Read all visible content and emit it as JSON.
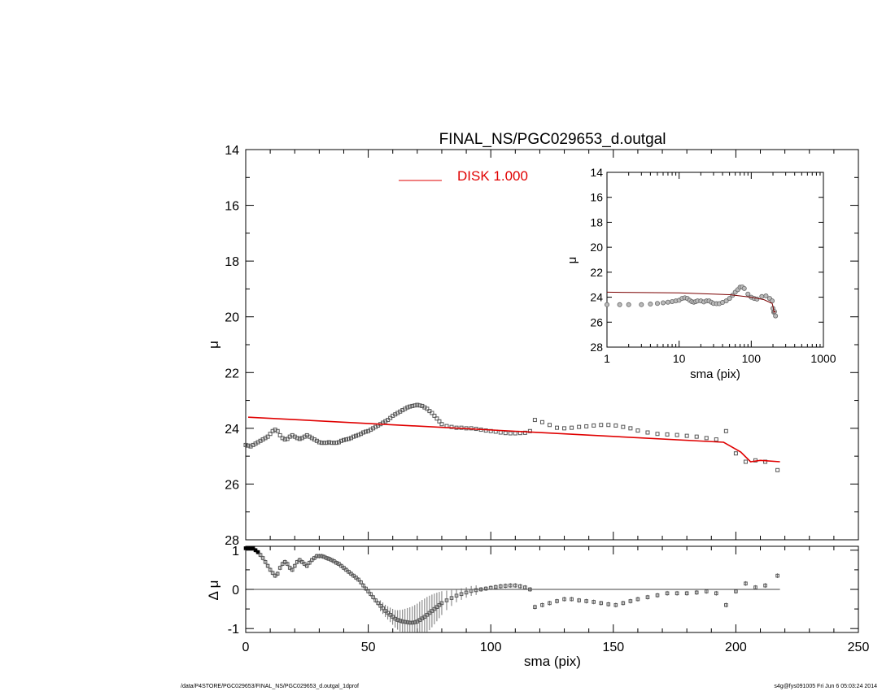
{
  "title": "FINAL_NS/PGC029653_d.outgal",
  "footer": {
    "left": "/data/P4STORE/PGC029653/FINAL_NS/PGC029653_d.outgal_1dprof",
    "right": "s4g@fys091005  Fri Jun  6 05:03:24 2014"
  },
  "colors": {
    "model": "#e00000",
    "axes": "#000000",
    "points": "#555555",
    "inset_model": "#7a0000"
  },
  "chart_data": [
    {
      "type": "scatter",
      "panel": "main",
      "xlabel": "",
      "ylabel": "μ",
      "xlim": [
        0,
        250
      ],
      "ylim": [
        28,
        14
      ],
      "yticks": [
        14,
        16,
        18,
        20,
        22,
        24,
        26,
        28
      ],
      "legend": {
        "label": "DISK  1.000",
        "placement": "top-left"
      },
      "series": [
        {
          "name": "",
          "marker": "square",
          "x": [
            0,
            1,
            2,
            3,
            4,
            5,
            6,
            7,
            8,
            9,
            10,
            11,
            12,
            13,
            14,
            15,
            16,
            17,
            18,
            19,
            20,
            21,
            22,
            23,
            24,
            25,
            26,
            27,
            28,
            29,
            30,
            31,
            32,
            33,
            34,
            35,
            36,
            37,
            38,
            39,
            40,
            41,
            42,
            43,
            44,
            45,
            46,
            47,
            48,
            49,
            50,
            51,
            52,
            53,
            54,
            55,
            56,
            57,
            58,
            59,
            60,
            61,
            62,
            63,
            64,
            65,
            66,
            67,
            68,
            69,
            70,
            71,
            72,
            73,
            74,
            75,
            76,
            77,
            78,
            79,
            80,
            82,
            84,
            86,
            88,
            90,
            92,
            94,
            96,
            98,
            100,
            102,
            104,
            106,
            108,
            110,
            112,
            114,
            116,
            118,
            121,
            124,
            127,
            130,
            133,
            136,
            139,
            142,
            145,
            148,
            151,
            154,
            157,
            160,
            164,
            168,
            172,
            176,
            180,
            184,
            188,
            192,
            196,
            200,
            204,
            208,
            212,
            217
          ],
          "y": [
            24.6,
            24.62,
            24.65,
            24.6,
            24.55,
            24.5,
            24.45,
            24.4,
            24.35,
            24.3,
            24.2,
            24.1,
            24.05,
            24.1,
            24.25,
            24.35,
            24.4,
            24.38,
            24.3,
            24.25,
            24.3,
            24.35,
            24.38,
            24.35,
            24.3,
            24.25,
            24.3,
            24.35,
            24.4,
            24.45,
            24.5,
            24.52,
            24.52,
            24.52,
            24.5,
            24.52,
            24.52,
            24.52,
            24.5,
            24.45,
            24.42,
            24.4,
            24.38,
            24.35,
            24.3,
            24.27,
            24.24,
            24.2,
            24.15,
            24.12,
            24.1,
            24.05,
            24.0,
            23.95,
            23.9,
            23.85,
            23.8,
            23.75,
            23.7,
            23.63,
            23.55,
            23.5,
            23.45,
            23.4,
            23.35,
            23.3,
            23.25,
            23.22,
            23.2,
            23.18,
            23.16,
            23.18,
            23.2,
            23.25,
            23.3,
            23.38,
            23.45,
            23.55,
            23.65,
            23.75,
            23.85,
            23.92,
            23.95,
            23.98,
            23.98,
            24.0,
            24.0,
            24.02,
            24.05,
            24.08,
            24.1,
            24.12,
            24.15,
            24.17,
            24.18,
            24.18,
            24.17,
            24.16,
            24.1,
            23.7,
            23.78,
            23.88,
            23.98,
            24.0,
            23.98,
            23.95,
            23.93,
            23.9,
            23.88,
            23.88,
            23.9,
            23.95,
            24.0,
            24.08,
            24.15,
            24.2,
            24.22,
            24.24,
            24.27,
            24.3,
            24.35,
            24.4,
            24.1,
            24.9,
            25.2,
            25.15,
            25.2,
            25.5
          ]
        }
      ],
      "model": {
        "name": "DISK  1.000",
        "x": [
          1,
          195,
          202,
          206,
          210,
          218
        ],
        "y": [
          23.6,
          24.5,
          24.85,
          25.2,
          25.15,
          25.2
        ]
      }
    },
    {
      "type": "scatter",
      "panel": "residual",
      "xlabel": "sma (pix)",
      "ylabel": "Δ μ",
      "xlim": [
        0,
        250
      ],
      "ylim": [
        -1.1,
        1.1
      ],
      "xticks": [
        0,
        50,
        100,
        150,
        200,
        250
      ],
      "yticks": [
        -1,
        0,
        1
      ],
      "series": [
        {
          "name": "",
          "marker": "square-with-errorbar",
          "x": [
            0,
            1,
            2,
            3,
            4,
            5,
            6,
            7,
            8,
            9,
            10,
            11,
            12,
            13,
            14,
            15,
            16,
            17,
            18,
            19,
            20,
            21,
            22,
            23,
            24,
            25,
            26,
            27,
            28,
            29,
            30,
            31,
            32,
            33,
            34,
            35,
            36,
            37,
            38,
            39,
            40,
            41,
            42,
            43,
            44,
            45,
            46,
            47,
            48,
            49,
            50,
            51,
            52,
            53,
            54,
            55,
            56,
            57,
            58,
            59,
            60,
            61,
            62,
            63,
            64,
            65,
            66,
            67,
            68,
            69,
            70,
            71,
            72,
            73,
            74,
            75,
            76,
            77,
            78,
            79,
            80,
            82,
            84,
            86,
            88,
            90,
            92,
            94,
            96,
            98,
            100,
            102,
            104,
            106,
            108,
            110,
            112,
            114,
            116,
            118,
            121,
            124,
            127,
            130,
            133,
            136,
            139,
            142,
            145,
            148,
            151,
            154,
            157,
            160,
            164,
            168,
            172,
            176,
            180,
            184,
            188,
            192,
            196,
            200,
            204,
            208,
            212,
            217
          ],
          "y": [
            1.05,
            1.05,
            1.05,
            1.05,
            1.0,
            0.95,
            0.88,
            0.8,
            0.7,
            0.6,
            0.5,
            0.42,
            0.35,
            0.4,
            0.55,
            0.65,
            0.7,
            0.65,
            0.55,
            0.5,
            0.6,
            0.7,
            0.75,
            0.7,
            0.65,
            0.6,
            0.68,
            0.75,
            0.8,
            0.85,
            0.85,
            0.85,
            0.83,
            0.8,
            0.78,
            0.75,
            0.72,
            0.68,
            0.65,
            0.6,
            0.55,
            0.5,
            0.45,
            0.4,
            0.35,
            0.3,
            0.25,
            0.18,
            0.1,
            0.02,
            -0.05,
            -0.12,
            -0.2,
            -0.28,
            -0.35,
            -0.42,
            -0.48,
            -0.55,
            -0.6,
            -0.65,
            -0.7,
            -0.75,
            -0.78,
            -0.8,
            -0.82,
            -0.83,
            -0.84,
            -0.85,
            -0.85,
            -0.84,
            -0.82,
            -0.78,
            -0.74,
            -0.7,
            -0.65,
            -0.6,
            -0.55,
            -0.5,
            -0.45,
            -0.4,
            -0.35,
            -0.28,
            -0.22,
            -0.16,
            -0.12,
            -0.08,
            -0.04,
            -0.02,
            0.0,
            0.02,
            0.04,
            0.06,
            0.08,
            0.09,
            0.1,
            0.1,
            0.08,
            0.05,
            0.0,
            -0.45,
            -0.4,
            -0.35,
            -0.3,
            -0.25,
            -0.25,
            -0.28,
            -0.3,
            -0.32,
            -0.35,
            -0.38,
            -0.4,
            -0.35,
            -0.3,
            -0.25,
            -0.2,
            -0.15,
            -0.1,
            -0.1,
            -0.1,
            -0.08,
            -0.05,
            -0.1,
            -0.4,
            -0.05,
            0.15,
            0.05,
            0.1,
            0.35
          ]
        }
      ]
    },
    {
      "type": "line",
      "panel": "inset",
      "xlabel": "sma (pix)",
      "ylabel": "μ",
      "xscale": "log",
      "xlim": [
        1,
        1000
      ],
      "ylim": [
        28,
        14
      ],
      "xticks": [
        1,
        10,
        100,
        1000
      ],
      "yticks": [
        14,
        16,
        18,
        20,
        22,
        24,
        26,
        28
      ],
      "series": [
        {
          "name": "",
          "marker": "circle",
          "x": [
            1,
            1.5,
            2,
            3,
            4,
            5,
            6,
            7,
            8,
            9,
            10,
            11,
            12,
            13,
            14,
            15,
            16,
            17,
            18,
            20,
            22,
            24,
            26,
            28,
            30,
            33,
            36,
            40,
            45,
            50,
            55,
            60,
            65,
            70,
            75,
            80,
            90,
            100,
            110,
            120,
            140,
            160,
            180,
            195,
            200,
            205,
            210,
            217
          ],
          "y": [
            24.6,
            24.6,
            24.6,
            24.6,
            24.55,
            24.5,
            24.45,
            24.4,
            24.35,
            24.3,
            24.25,
            24.1,
            24.05,
            24.1,
            24.25,
            24.35,
            24.4,
            24.35,
            24.3,
            24.3,
            24.38,
            24.3,
            24.3,
            24.4,
            24.5,
            24.52,
            24.52,
            24.42,
            24.3,
            24.1,
            23.85,
            23.6,
            23.4,
            23.2,
            23.18,
            23.3,
            23.75,
            24.0,
            24.1,
            24.15,
            23.95,
            23.9,
            24.1,
            24.3,
            24.9,
            25.2,
            25.15,
            25.5
          ]
        }
      ],
      "model": {
        "name": "",
        "x": [
          1,
          10,
          50,
          100,
          150,
          195,
          202,
          206,
          210,
          218
        ],
        "y": [
          23.6,
          23.65,
          23.8,
          24.0,
          24.2,
          24.5,
          24.85,
          25.2,
          25.15,
          25.2
        ]
      }
    }
  ]
}
